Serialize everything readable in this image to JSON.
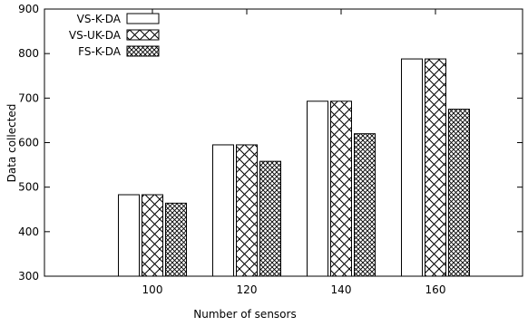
{
  "chart_data": {
    "type": "bar",
    "xlabel": "Number of sensors",
    "ylabel": "Data collected",
    "categories": [
      "100",
      "120",
      "140",
      "160"
    ],
    "ylim": [
      300,
      900
    ],
    "yticks": [
      300,
      400,
      500,
      600,
      700,
      800,
      900
    ],
    "legend_position": "top-left",
    "grid": false,
    "series": [
      {
        "name": "VS-K-DA",
        "pattern": "empty",
        "values": [
          483,
          595,
          693,
          788
        ]
      },
      {
        "name": "VS-UK-DA",
        "pattern": "crosshatch-wide",
        "values": [
          483,
          595,
          693,
          788
        ]
      },
      {
        "name": "FS-K-DA",
        "pattern": "crosshatch-dense",
        "values": [
          464,
          558,
          620,
          675
        ]
      }
    ]
  }
}
